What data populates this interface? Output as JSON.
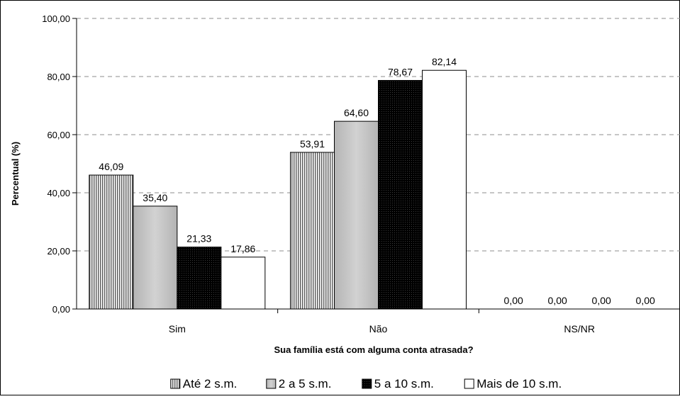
{
  "chart_data": {
    "type": "bar",
    "title": "",
    "xlabel": "Sua família está com alguma conta atrasada?",
    "ylabel": "Percentual (%)",
    "ylim": [
      0,
      100
    ],
    "yticks": [
      0,
      20,
      40,
      60,
      80,
      100
    ],
    "ytick_labels": [
      "0,00",
      "20,00",
      "40,00",
      "60,00",
      "80,00",
      "100,00"
    ],
    "grid": "horizontal dashed",
    "legend_position": "bottom",
    "categories": [
      "Sim",
      "Não",
      "NS/NR"
    ],
    "series": [
      {
        "name": "Até 2 s.m.",
        "values": [
          46.09,
          53.91,
          0.0
        ],
        "labels": [
          "46,09",
          "53,91",
          "0,00"
        ],
        "pattern": "vertical-stripes"
      },
      {
        "name": "2 a 5 s.m.",
        "values": [
          35.4,
          64.6,
          0.0
        ],
        "labels": [
          "35,40",
          "64,60",
          "0,00"
        ],
        "pattern": "light-gray"
      },
      {
        "name": "5 a 10 s.m.",
        "values": [
          21.33,
          78.67,
          0.0
        ],
        "labels": [
          "21,33",
          "78,67",
          "0,00"
        ],
        "pattern": "black-dotted"
      },
      {
        "name": "Mais de 10 s.m.",
        "values": [
          17.86,
          82.14,
          0.0
        ],
        "labels": [
          "17,86",
          "82,14",
          "0,00"
        ],
        "pattern": "white"
      }
    ]
  }
}
